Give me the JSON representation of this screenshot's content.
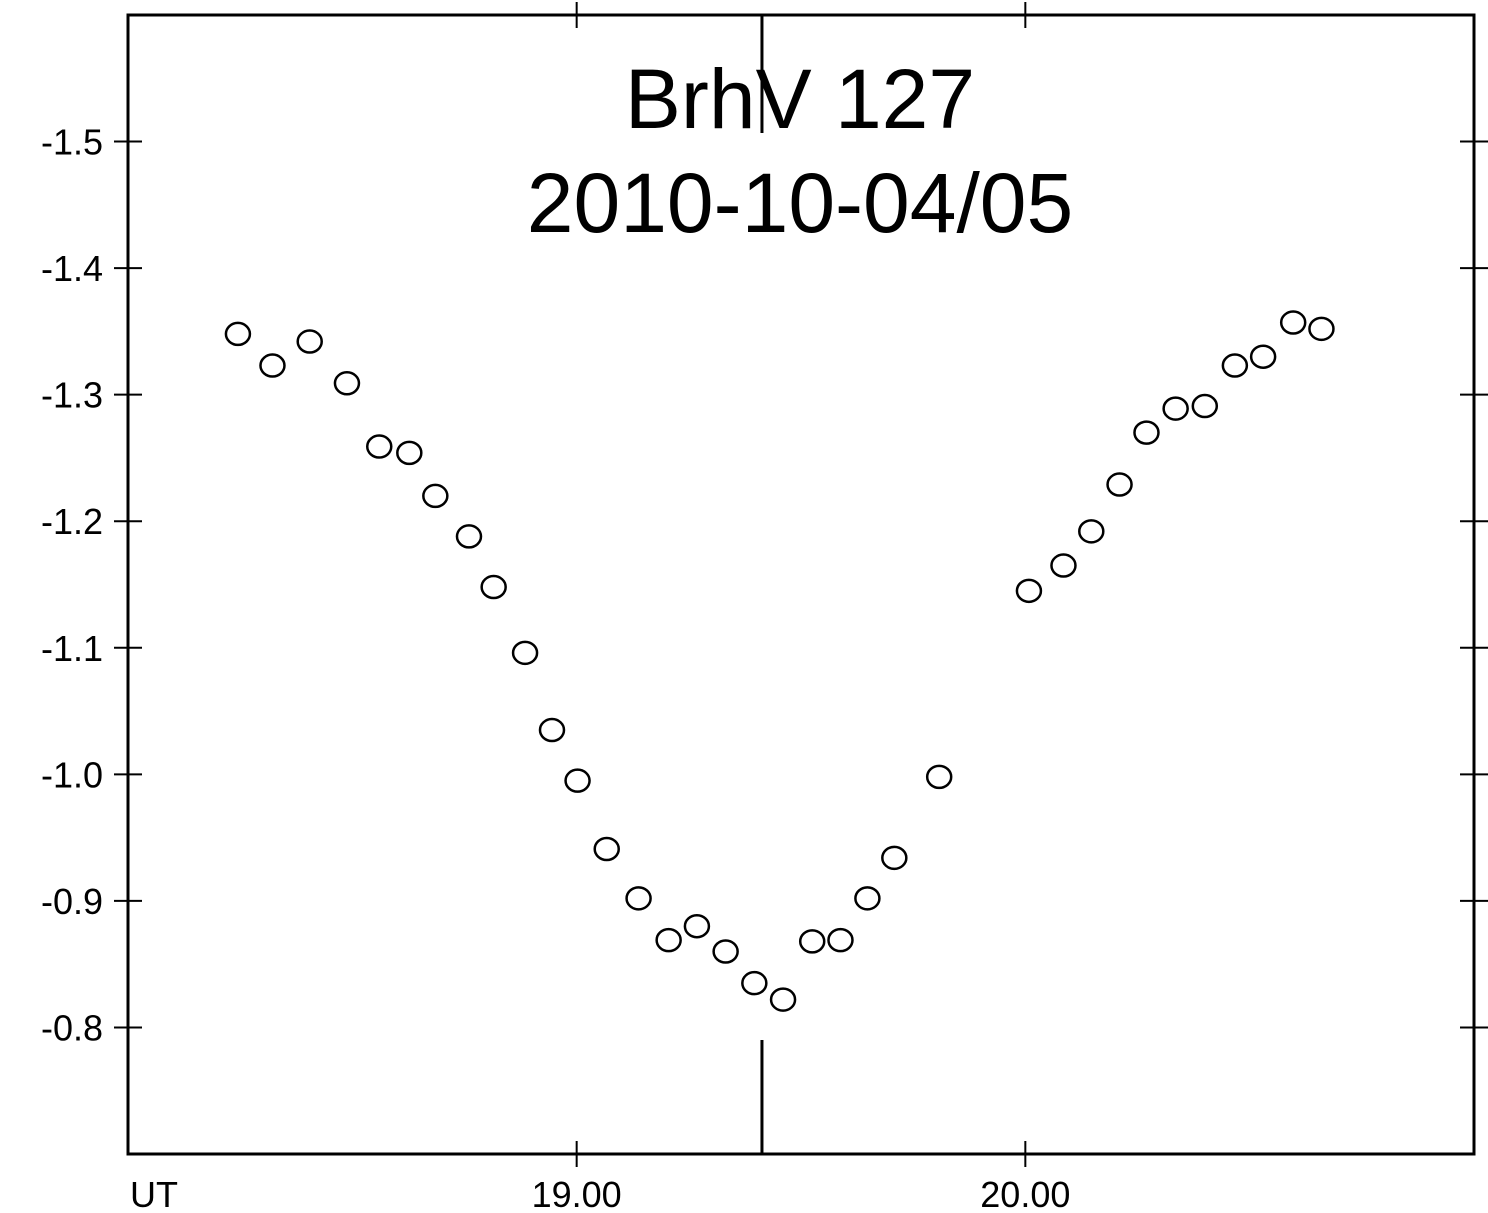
{
  "chart_data": {
    "type": "scatter",
    "title": "BrhV 127",
    "subtitle": "2010-10-04/05",
    "xlabel": "UT",
    "ylabel": "",
    "x_unit": "hours UT",
    "xlim": [
      18.0,
      21.0
    ],
    "ylim": [
      -1.6,
      -0.7
    ],
    "y_axis_inverted": true,
    "grid": false,
    "legend": "none",
    "marker": "open-circle",
    "marker_color": "#000000",
    "x_ticks": [
      {
        "value": 19.0,
        "label": "19.00"
      },
      {
        "value": 20.0,
        "label": "20.00"
      }
    ],
    "y_ticks": [
      {
        "value": -1.5,
        "label": "-1.5"
      },
      {
        "value": -1.4,
        "label": "-1.4"
      },
      {
        "value": -1.3,
        "label": "-1.3"
      },
      {
        "value": -1.2,
        "label": "-1.2"
      },
      {
        "value": -1.1,
        "label": "-1.1"
      },
      {
        "value": -1.0,
        "label": "-1.0"
      },
      {
        "value": -0.9,
        "label": "-0.9"
      },
      {
        "value": -0.8,
        "label": "-0.8"
      }
    ],
    "minimum_marker_x": 19.413,
    "series": [
      {
        "x": [
          18.245,
          18.322,
          18.405,
          18.488,
          18.56,
          18.627,
          18.685,
          18.76,
          18.815,
          18.885,
          18.945,
          19.002,
          19.067,
          19.138,
          19.205,
          19.268,
          19.332,
          19.396,
          19.46,
          19.525,
          19.588,
          19.648,
          19.708,
          19.808,
          20.008,
          20.085,
          20.147,
          20.21,
          20.27,
          20.335,
          20.4,
          20.467,
          20.53,
          20.597,
          20.66
        ],
        "y": [
          -1.348,
          -1.323,
          -1.342,
          -1.309,
          -1.259,
          -1.254,
          -1.22,
          -1.188,
          -1.148,
          -1.096,
          -1.035,
          -0.995,
          -0.941,
          -0.902,
          -0.869,
          -0.88,
          -0.86,
          -0.835,
          -0.822,
          -0.868,
          -0.869,
          -0.902,
          -0.934,
          -0.998,
          -1.145,
          -1.165,
          -1.192,
          -1.229,
          -1.27,
          -1.289,
          -1.291,
          -1.323,
          -1.33,
          -1.357,
          -1.352
        ]
      }
    ]
  }
}
